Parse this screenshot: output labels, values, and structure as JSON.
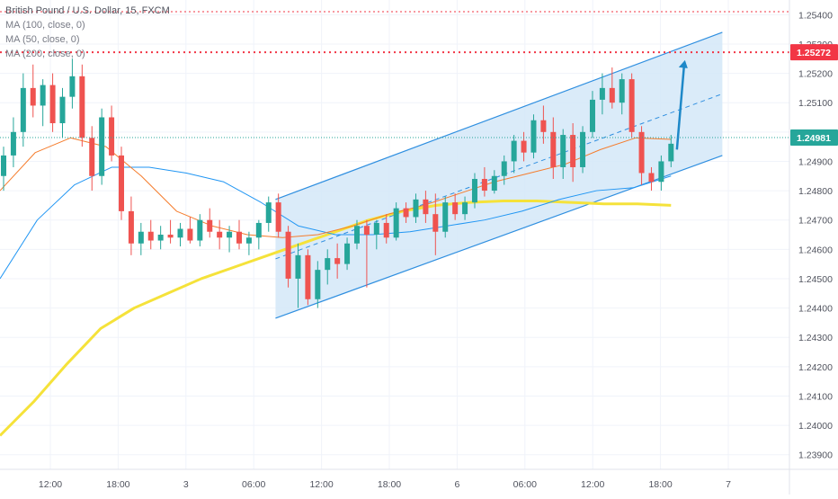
{
  "legend": {
    "title": "British Pound / U.S. Dollar, 15, FXCM",
    "ma100": "MA (100, close, 0)",
    "ma50": "MA (50, close, 0)",
    "ma200": "MA (200, close, 0)"
  },
  "chart_data": {
    "type": "candlestick",
    "title": "British Pound / U.S. Dollar, 15, FXCM",
    "ylim": [
      1.2385,
      1.2545
    ],
    "y_ticks": [
      "1.25400",
      "1.25300",
      "1.25200",
      "1.25100",
      "1.25000",
      "1.24900",
      "1.24800",
      "1.24700",
      "1.24600",
      "1.24500",
      "1.24400",
      "1.24300",
      "1.24200",
      "1.24100",
      "1.24000",
      "1.23900"
    ],
    "x_ticks": [
      "12:00",
      "18:00",
      "3",
      "06:00",
      "12:00",
      "18:00",
      "6",
      "06:00",
      "12:00",
      "18:00",
      "7"
    ],
    "price_labels": {
      "level_red": "1.25272",
      "current": "1.24981"
    },
    "levels": {
      "top_dotted": 1.2541,
      "red_dotted": 1.25272,
      "current": 1.24981
    },
    "colors": {
      "up": "#26a69a",
      "down": "#ef5350",
      "ma50": "#f57c2c",
      "ma100": "#2196f3",
      "ma200": "#f5e23a",
      "channel": "#2f8fe0",
      "channel_fill": "#d4e8f8",
      "red_line": "#f23645",
      "current_line": "#26a69a"
    },
    "channel": {
      "upper": [
        [
          0,
          1.2477
        ],
        [
          1,
          1.2534
        ]
      ],
      "lower": [
        [
          0,
          1.24365
        ],
        [
          1,
          1.2492
        ]
      ],
      "start_frac": 0.349,
      "end_frac": 0.915
    },
    "arrow": {
      "from": 1.2494,
      "to": 1.25245
    },
    "ma200": [
      1.23965,
      1.2408,
      1.2421,
      1.2433,
      1.244,
      1.2445,
      1.245,
      1.2454,
      1.2458,
      1.2462,
      1.2466,
      1.247,
      1.2473,
      1.2475,
      1.2476,
      1.24765,
      1.24765,
      1.2476,
      1.24755,
      1.24755,
      1.2475
    ],
    "ma100": [
      1.245,
      1.247,
      1.2482,
      1.2488,
      1.2488,
      1.2486,
      1.2483,
      1.2476,
      1.2468,
      1.2465,
      1.2465,
      1.2466,
      1.2468,
      1.247,
      1.2473,
      1.2477,
      1.248,
      1.2481,
      1.2485
    ],
    "ma50": [
      1.248,
      1.2493,
      1.2498,
      1.2495,
      1.2485,
      1.2473,
      1.2468,
      1.2465,
      1.2464,
      1.2465,
      1.2468,
      1.2472,
      1.2475,
      1.2479,
      1.2483,
      1.2486,
      1.2489,
      1.2494,
      1.2498,
      1.24975
    ],
    "candles": [
      [
        1.2485,
        1.2495,
        1.248,
        1.2492
      ],
      [
        1.2492,
        1.2505,
        1.2488,
        1.25
      ],
      [
        1.25,
        1.252,
        1.2495,
        1.2515
      ],
      [
        1.2515,
        1.2523,
        1.2505,
        1.2509
      ],
      [
        1.2509,
        1.2518,
        1.2502,
        1.2516
      ],
      [
        1.2516,
        1.252,
        1.25,
        1.2503
      ],
      [
        1.2503,
        1.2515,
        1.2498,
        1.2512
      ],
      [
        1.2512,
        1.2525,
        1.2508,
        1.2519
      ],
      [
        1.2519,
        1.2523,
        1.2495,
        1.2498
      ],
      [
        1.2498,
        1.2502,
        1.248,
        1.2485
      ],
      [
        1.2485,
        1.2508,
        1.2482,
        1.2505
      ],
      [
        1.2505,
        1.2509,
        1.249,
        1.2492
      ],
      [
        1.2492,
        1.2495,
        1.247,
        1.2473
      ],
      [
        1.2473,
        1.2478,
        1.2458,
        1.2462
      ],
      [
        1.2462,
        1.2469,
        1.2458,
        1.2466
      ],
      [
        1.2466,
        1.247,
        1.246,
        1.2463
      ],
      [
        1.2463,
        1.2468,
        1.246,
        1.2465
      ],
      [
        1.2465,
        1.247,
        1.2462,
        1.2464
      ],
      [
        1.2464,
        1.2469,
        1.2461,
        1.2467
      ],
      [
        1.2467,
        1.2471,
        1.2462,
        1.2463
      ],
      [
        1.2463,
        1.2472,
        1.2461,
        1.247
      ],
      [
        1.247,
        1.2474,
        1.2464,
        1.2466
      ],
      [
        1.2466,
        1.247,
        1.246,
        1.2464
      ],
      [
        1.2464,
        1.2468,
        1.2459,
        1.2466
      ],
      [
        1.2466,
        1.247,
        1.246,
        1.2462
      ],
      [
        1.2462,
        1.2466,
        1.2458,
        1.2464
      ],
      [
        1.2464,
        1.247,
        1.246,
        1.2469
      ],
      [
        1.2469,
        1.2478,
        1.2466,
        1.2476
      ],
      [
        1.2476,
        1.2479,
        1.2464,
        1.2466
      ],
      [
        1.2466,
        1.2468,
        1.2447,
        1.245
      ],
      [
        1.245,
        1.2462,
        1.244,
        1.2458
      ],
      [
        1.2458,
        1.246,
        1.2441,
        1.2443
      ],
      [
        1.2443,
        1.2456,
        1.244,
        1.2453
      ],
      [
        1.2453,
        1.246,
        1.2448,
        1.2457
      ],
      [
        1.2457,
        1.2462,
        1.245,
        1.2455
      ],
      [
        1.2455,
        1.2464,
        1.2453,
        1.2462
      ],
      [
        1.2462,
        1.247,
        1.246,
        1.2468
      ],
      [
        1.2468,
        1.247,
        1.2447,
        1.2465
      ],
      [
        1.2465,
        1.247,
        1.246,
        1.2469
      ],
      [
        1.2469,
        1.2472,
        1.2462,
        1.2464
      ],
      [
        1.2464,
        1.2476,
        1.2463,
        1.2474
      ],
      [
        1.2474,
        1.2476,
        1.2469,
        1.2471
      ],
      [
        1.2471,
        1.2479,
        1.2469,
        1.2477
      ],
      [
        1.2477,
        1.248,
        1.2469,
        1.2472
      ],
      [
        1.2472,
        1.2479,
        1.2458,
        1.2466
      ],
      [
        1.2466,
        1.2478,
        1.2464,
        1.2476
      ],
      [
        1.2476,
        1.2479,
        1.247,
        1.2472
      ],
      [
        1.2472,
        1.2478,
        1.247,
        1.2476
      ],
      [
        1.2476,
        1.2486,
        1.2474,
        1.2484
      ],
      [
        1.2484,
        1.2488,
        1.2478,
        1.248
      ],
      [
        1.248,
        1.2487,
        1.2479,
        1.2485
      ],
      [
        1.2485,
        1.2492,
        1.2482,
        1.249
      ],
      [
        1.249,
        1.2499,
        1.2486,
        1.2497
      ],
      [
        1.2497,
        1.25,
        1.249,
        1.2493
      ],
      [
        1.2493,
        1.2506,
        1.2491,
        1.2504
      ],
      [
        1.2504,
        1.2509,
        1.2496,
        1.25
      ],
      [
        1.25,
        1.2505,
        1.2484,
        1.2488
      ],
      [
        1.2488,
        1.2501,
        1.2484,
        1.2499
      ],
      [
        1.2499,
        1.2503,
        1.2483,
        1.2488
      ],
      [
        1.2488,
        1.2502,
        1.2486,
        1.25
      ],
      [
        1.25,
        1.2514,
        1.2498,
        1.2511
      ],
      [
        1.2511,
        1.252,
        1.2506,
        1.2515
      ],
      [
        1.2515,
        1.2522,
        1.2508,
        1.251
      ],
      [
        1.251,
        1.252,
        1.2506,
        1.2518
      ],
      [
        1.2518,
        1.252,
        1.2498,
        1.25
      ],
      [
        1.25,
        1.2502,
        1.2482,
        1.2486
      ],
      [
        1.2486,
        1.2488,
        1.248,
        1.2483
      ],
      [
        1.2483,
        1.2492,
        1.248,
        1.249
      ],
      [
        1.249,
        1.2499,
        1.2488,
        1.2496
      ]
    ]
  }
}
